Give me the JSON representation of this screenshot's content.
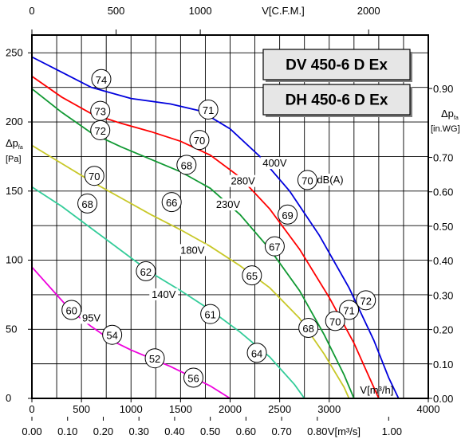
{
  "chart_data": {
    "type": "line",
    "titles": [
      "DV 450-6 D Ex",
      "DH 450-6 D Ex"
    ],
    "x_axis_bottom": {
      "label": "V[m³/h]",
      "min": 0,
      "max": 4000,
      "ticks": [
        0,
        500,
        1000,
        1500,
        2000,
        2500,
        3000,
        4000
      ],
      "tick_labels": [
        "0",
        "500",
        "1000",
        "1500",
        "2000",
        "2500",
        "3000",
        "4000"
      ]
    },
    "x_axis_bottom2": {
      "label": "V[m³/s]",
      "ticks": [
        0.0,
        0.1,
        0.2,
        0.3,
        0.4,
        0.5,
        0.6,
        0.7,
        0.8,
        1.0
      ],
      "tick_labels": [
        "0.00",
        "0.10",
        "0.20",
        "0.30",
        "0.40",
        "0.50",
        "0.60",
        "0.70",
        "0.80",
        "1.00"
      ]
    },
    "x_axis_top": {
      "label": "V[C.F.M.]",
      "ticks": [
        0,
        500,
        1000,
        2000
      ],
      "tick_labels": [
        "0",
        "500",
        "1000",
        "2000"
      ]
    },
    "y_axis_left": {
      "label": "Δp",
      "label_sub": "fa",
      "unit": "[Pa]",
      "min": 0,
      "max": 260,
      "ticks": [
        0,
        50,
        100,
        150,
        200,
        250
      ],
      "tick_labels": [
        "0",
        "50",
        "100",
        "150",
        "200",
        "250"
      ]
    },
    "y_axis_right": {
      "label": "Δp",
      "label_sub": "fa",
      "unit": "[in.WG]",
      "ticks": [
        0.0,
        0.1,
        0.2,
        0.3,
        0.4,
        0.5,
        0.6,
        0.7,
        0.9
      ],
      "tick_labels": [
        "0.00",
        "0.10",
        "0.20",
        "0.30",
        "0.40",
        "0.50",
        "0.60",
        "0.70",
        "0.90"
      ]
    },
    "grid": true,
    "series": [
      {
        "name": "400V",
        "color": "#0000dd",
        "points": [
          [
            0,
            247
          ],
          [
            300,
            236
          ],
          [
            600,
            225
          ],
          [
            1000,
            217
          ],
          [
            1400,
            213
          ],
          [
            1700,
            208
          ],
          [
            2000,
            195
          ],
          [
            2300,
            175
          ],
          [
            2600,
            150
          ],
          [
            2900,
            118
          ],
          [
            3200,
            80
          ],
          [
            3450,
            42
          ],
          [
            3600,
            15
          ],
          [
            3700,
            0
          ]
        ]
      },
      {
        "name": "280V",
        "color": "#ff0000",
        "points": [
          [
            0,
            233
          ],
          [
            300,
            218
          ],
          [
            600,
            206
          ],
          [
            900,
            199
          ],
          [
            1200,
            193
          ],
          [
            1500,
            186
          ],
          [
            1800,
            176
          ],
          [
            2100,
            160
          ],
          [
            2400,
            137
          ],
          [
            2700,
            108
          ],
          [
            3000,
            73
          ],
          [
            3250,
            40
          ],
          [
            3400,
            16
          ],
          [
            3500,
            0
          ]
        ]
      },
      {
        "name": "230V",
        "color": "#119933",
        "points": [
          [
            0,
            224
          ],
          [
            300,
            207
          ],
          [
            600,
            192
          ],
          [
            900,
            182
          ],
          [
            1200,
            173
          ],
          [
            1500,
            164
          ],
          [
            1800,
            152
          ],
          [
            2100,
            133
          ],
          [
            2400,
            108
          ],
          [
            2700,
            78
          ],
          [
            2950,
            46
          ],
          [
            3150,
            17
          ],
          [
            3250,
            0
          ]
        ]
      },
      {
        "name": "180V",
        "color": "#c8c828",
        "points": [
          [
            0,
            183
          ],
          [
            300,
            170
          ],
          [
            600,
            157
          ],
          [
            900,
            145
          ],
          [
            1200,
            133
          ],
          [
            1500,
            122
          ],
          [
            1800,
            110
          ],
          [
            2100,
            96
          ],
          [
            2400,
            80
          ],
          [
            2700,
            58
          ],
          [
            2950,
            32
          ],
          [
            3150,
            8
          ],
          [
            3200,
            0
          ]
        ]
      },
      {
        "name": "140V",
        "color": "#33cc99",
        "points": [
          [
            0,
            153
          ],
          [
            300,
            139
          ],
          [
            600,
            123
          ],
          [
            900,
            107
          ],
          [
            1200,
            91
          ],
          [
            1500,
            78
          ],
          [
            1800,
            64
          ],
          [
            2100,
            48
          ],
          [
            2400,
            30
          ],
          [
            2650,
            10
          ],
          [
            2750,
            0
          ]
        ]
      },
      {
        "name": "95V",
        "color": "#ee00dd",
        "points": [
          [
            0,
            95
          ],
          [
            200,
            79
          ],
          [
            400,
            63
          ],
          [
            600,
            52
          ],
          [
            800,
            42
          ],
          [
            1000,
            35
          ],
          [
            1200,
            29
          ],
          [
            1400,
            23
          ],
          [
            1600,
            16
          ],
          [
            1800,
            9
          ],
          [
            2000,
            0
          ]
        ]
      }
    ],
    "curve_labels": [
      {
        "text": "400V",
        "x": 2450,
        "y": 170
      },
      {
        "text": "280V",
        "x": 2130,
        "y": 157
      },
      {
        "text": "230V",
        "x": 1980,
        "y": 140
      },
      {
        "text": "180V",
        "x": 1620,
        "y": 107
      },
      {
        "text": "140V",
        "x": 1330,
        "y": 75
      },
      {
        "text": "95V",
        "x": 600,
        "y": 58
      },
      {
        "text": "dB(A)",
        "x": 3010,
        "y": 158
      }
    ],
    "db_markers": [
      {
        "value": "74",
        "x": 700,
        "y": 231
      },
      {
        "value": "71",
        "x": 1780,
        "y": 209
      },
      {
        "value": "73",
        "x": 690,
        "y": 208
      },
      {
        "value": "72",
        "x": 690,
        "y": 194
      },
      {
        "value": "70",
        "x": 1690,
        "y": 187
      },
      {
        "value": "68",
        "x": 1560,
        "y": 169
      },
      {
        "value": "70",
        "x": 630,
        "y": 161
      },
      {
        "value": "70",
        "x": 2780,
        "y": 158
      },
      {
        "value": "69",
        "x": 2580,
        "y": 133
      },
      {
        "value": "68",
        "x": 560,
        "y": 141
      },
      {
        "value": "66",
        "x": 1410,
        "y": 142
      },
      {
        "value": "67",
        "x": 2450,
        "y": 110
      },
      {
        "value": "62",
        "x": 1150,
        "y": 92
      },
      {
        "value": "65",
        "x": 2220,
        "y": 89
      },
      {
        "value": "72",
        "x": 3370,
        "y": 71
      },
      {
        "value": "71",
        "x": 3200,
        "y": 64
      },
      {
        "value": "70",
        "x": 3060,
        "y": 56
      },
      {
        "value": "60",
        "x": 400,
        "y": 64
      },
      {
        "value": "61",
        "x": 1800,
        "y": 61
      },
      {
        "value": "68",
        "x": 2790,
        "y": 51
      },
      {
        "value": "54",
        "x": 810,
        "y": 46
      },
      {
        "value": "64",
        "x": 2270,
        "y": 33
      },
      {
        "value": "52",
        "x": 1240,
        "y": 29
      },
      {
        "value": "56",
        "x": 1630,
        "y": 15
      }
    ]
  }
}
